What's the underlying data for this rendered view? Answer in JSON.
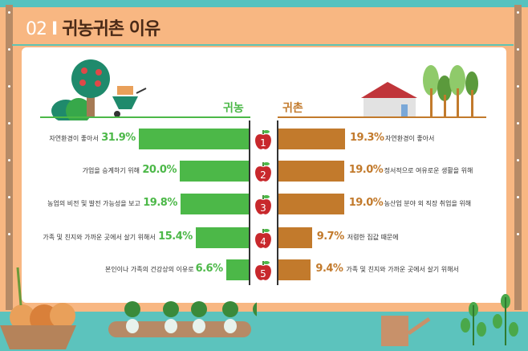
{
  "header": {
    "number": "02",
    "separator": "I",
    "title": "귀농귀촌 이유"
  },
  "colors": {
    "return_farm": "#4cb848",
    "return_rural": "#c27a2c",
    "header_bg": "#f8b782",
    "ground": "#5cc3bd"
  },
  "chart_data": {
    "type": "bar",
    "orientation": "horizontal-butterfly",
    "ranks": [
      "1",
      "2",
      "3",
      "4",
      "5"
    ],
    "series": [
      {
        "name": "귀농",
        "side": "left",
        "categories": [
          "자연환경이 좋아서",
          "가업을 승계하기 위해",
          "농업의 비전 및 발전 가능성을 보고",
          "가족 및 친지와 가까운 곳에서 살기 위해서",
          "본인이나 가족의 건강상의 이유로"
        ],
        "values": [
          31.9,
          20.0,
          19.8,
          15.4,
          6.6
        ],
        "labels": [
          "31.9%",
          "20.0%",
          "19.8%",
          "15.4%",
          "6.6%"
        ]
      },
      {
        "name": "귀촌",
        "side": "right",
        "categories": [
          "자연환경이 좋아서",
          "정서적으로 여유로운 생활을 위해",
          "농산업 분야 외 직장 취업을 위해",
          "저렴한 집값 때문에",
          "가족 및 친지와 가까운 곳에서 살기 위해서"
        ],
        "values": [
          19.3,
          19.0,
          19.0,
          9.7,
          9.4
        ],
        "labels": [
          "19.3%",
          "19.0%",
          "19.0%",
          "9.7%",
          "9.4%"
        ]
      }
    ],
    "unit": "%"
  }
}
